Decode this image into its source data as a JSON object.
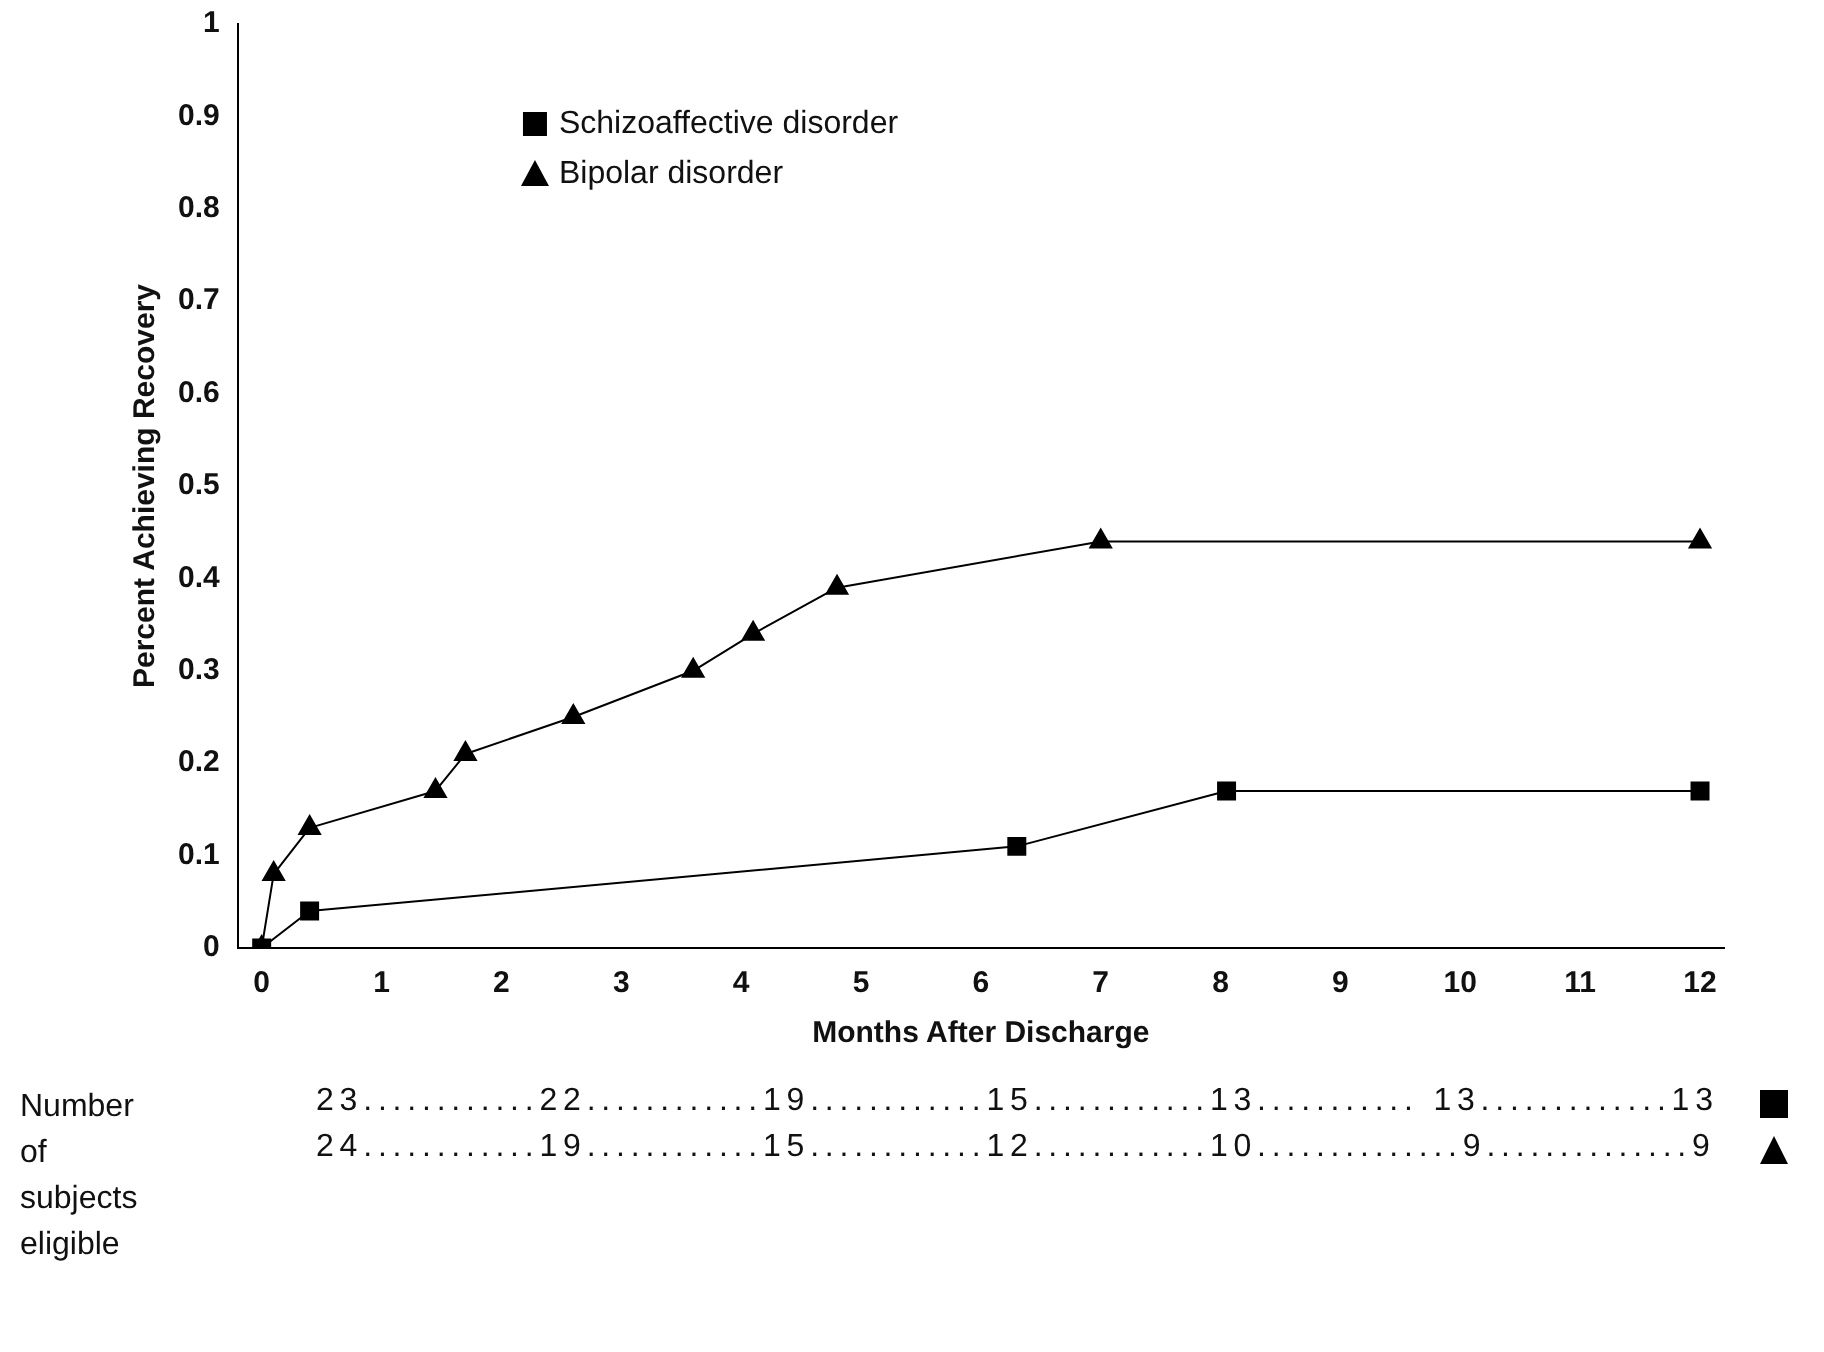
{
  "chart_data": {
    "type": "line",
    "xlabel": "Months After Discharge",
    "ylabel": "Percent Achieving Recovery",
    "xlim": [
      -0.2,
      12.2
    ],
    "ylim": [
      0,
      1
    ],
    "xticks": [
      0,
      1,
      2,
      3,
      4,
      5,
      6,
      7,
      8,
      9,
      10,
      11,
      12
    ],
    "yticks": [
      0,
      0.1,
      0.2,
      0.3,
      0.4,
      0.5,
      0.6,
      0.7,
      0.8,
      0.9,
      1
    ],
    "series": [
      {
        "name": "Schizoaffective disorder",
        "color": "#000000",
        "marker": "square",
        "x": [
          0,
          0.4,
          6.3,
          8.05,
          12
        ],
        "values": [
          0,
          0.04,
          0.11,
          0.17,
          0.17
        ]
      },
      {
        "name": "Bipolar disorder",
        "color": "#000000",
        "marker": "triangle",
        "x": [
          0,
          0.1,
          0.4,
          1.45,
          1.7,
          2.6,
          3.6,
          4.1,
          4.8,
          7,
          12
        ],
        "values": [
          0,
          0.08,
          0.13,
          0.17,
          0.21,
          0.25,
          0.3,
          0.34,
          0.39,
          0.44,
          0.44
        ]
      }
    ],
    "legend": "top",
    "grid": false,
    "annotations": [
      "Number of subjects eligible",
      "23............22............19............15............13........... 13.............13",
      "24............19............15............12............10..............9..............9"
    ]
  }
}
